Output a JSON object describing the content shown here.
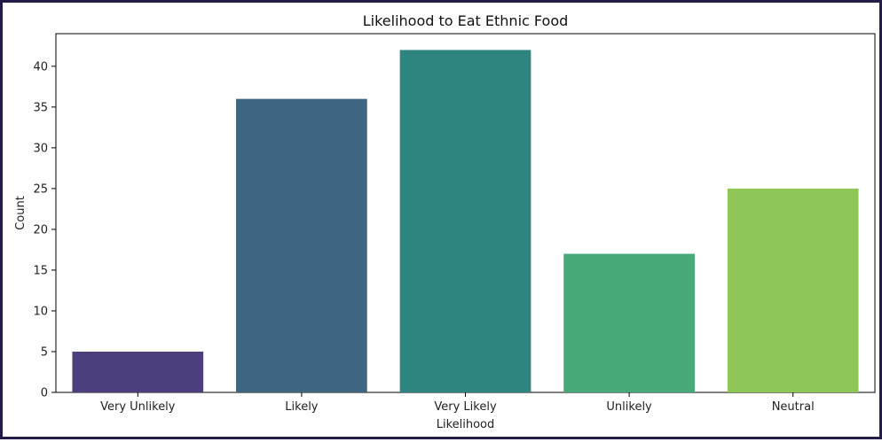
{
  "chart_data": {
    "type": "bar",
    "title": "Likelihood to Eat Ethnic Food",
    "xlabel": "Likelihood",
    "ylabel": "Count",
    "categories": [
      "Very Unlikely",
      "Likely",
      "Very Likely",
      "Unlikely",
      "Neutral"
    ],
    "values": [
      5,
      36,
      42,
      17,
      25
    ],
    "colors": [
      "#4d3f7d",
      "#3e6680",
      "#2e847e",
      "#47a978",
      "#8ec657"
    ],
    "ylim": [
      0,
      44
    ],
    "yticks": [
      0,
      5,
      10,
      15,
      20,
      25,
      30,
      35,
      40
    ],
    "grid": false,
    "legend": "none"
  }
}
